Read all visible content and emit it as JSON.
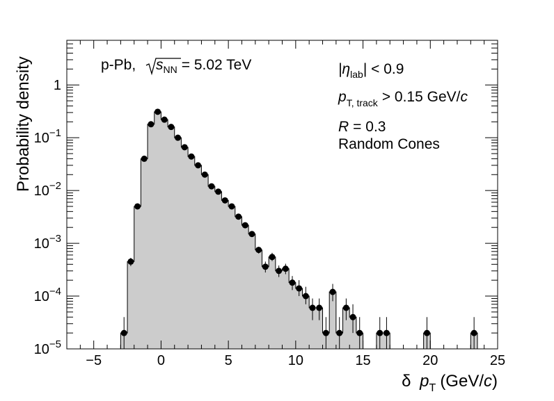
{
  "chart_data": {
    "type": "histogram",
    "xlabel": "δ p_T (GeV/c)",
    "ylabel": "Probability density",
    "xlim": [
      -7,
      25
    ],
    "ylim": [
      1e-05,
      7
    ],
    "yscale": "log",
    "bin_width": 0.5,
    "x_ticks": [
      -5,
      0,
      5,
      10,
      15,
      20,
      25
    ],
    "x_tick_labels": [
      "−5",
      "0",
      "5",
      "10",
      "15",
      "20",
      "25"
    ],
    "y_ticks": [
      {
        "value": 1e-05,
        "base": "10",
        "exp": "−5"
      },
      {
        "value": 0.0001,
        "base": "10",
        "exp": "−4"
      },
      {
        "value": 0.001,
        "base": "10",
        "exp": "−3"
      },
      {
        "value": 0.01,
        "base": "10",
        "exp": "−2"
      },
      {
        "value": 0.1,
        "base": "10",
        "exp": "−1"
      },
      {
        "value": 1,
        "base": "1",
        "exp": ""
      }
    ],
    "fill_color": "#cccccc",
    "line_color": "#000000",
    "marker_color": "#000000",
    "points": [
      {
        "x": -2.75,
        "y": 2e-05,
        "lo": 1e-05,
        "hi": 4e-05
      },
      {
        "x": -2.25,
        "y": 0.00045,
        "lo": 0.00037,
        "hi": 0.00053
      },
      {
        "x": -1.75,
        "y": 0.005
      },
      {
        "x": -1.25,
        "y": 0.04
      },
      {
        "x": -0.75,
        "y": 0.18
      },
      {
        "x": -0.25,
        "y": 0.31
      },
      {
        "x": 0.25,
        "y": 0.22
      },
      {
        "x": 0.75,
        "y": 0.16
      },
      {
        "x": 1.25,
        "y": 0.1
      },
      {
        "x": 1.75,
        "y": 0.066
      },
      {
        "x": 2.25,
        "y": 0.044
      },
      {
        "x": 2.75,
        "y": 0.03
      },
      {
        "x": 3.25,
        "y": 0.02
      },
      {
        "x": 3.75,
        "y": 0.012
      },
      {
        "x": 4.25,
        "y": 0.0095
      },
      {
        "x": 4.75,
        "y": 0.0065
      },
      {
        "x": 5.25,
        "y": 0.005
      },
      {
        "x": 5.75,
        "y": 0.0032
      },
      {
        "x": 6.25,
        "y": 0.0022
      },
      {
        "x": 6.75,
        "y": 0.0015
      },
      {
        "x": 7.25,
        "y": 0.00075,
        "lo": 0.00064,
        "hi": 0.00086
      },
      {
        "x": 7.75,
        "y": 0.00036,
        "lo": 0.00028,
        "hi": 0.00045
      },
      {
        "x": 8.25,
        "y": 0.00055,
        "lo": 0.00046,
        "hi": 0.00066
      },
      {
        "x": 8.75,
        "y": 0.0003,
        "lo": 0.00023,
        "hi": 0.00038
      },
      {
        "x": 9.25,
        "y": 0.00033,
        "lo": 0.00026,
        "hi": 0.00041
      },
      {
        "x": 9.75,
        "y": 0.00018,
        "lo": 0.00013,
        "hi": 0.00024
      },
      {
        "x": 10.25,
        "y": 0.00014,
        "lo": 0.0001,
        "hi": 0.0002
      },
      {
        "x": 10.75,
        "y": 0.0001,
        "lo": 7e-05,
        "hi": 0.00015
      },
      {
        "x": 11.25,
        "y": 6e-05,
        "lo": 3.5e-05,
        "hi": 9e-05
      },
      {
        "x": 11.75,
        "y": 6e-05,
        "lo": 3.5e-05,
        "hi": 9e-05
      },
      {
        "x": 12.25,
        "y": 2e-05,
        "lo": 1e-05,
        "hi": 4e-05
      },
      {
        "x": 12.75,
        "y": 0.00012,
        "lo": 8e-05,
        "hi": 0.00017
      },
      {
        "x": 13.25,
        "y": 2e-05,
        "lo": 1e-05,
        "hi": 4e-05
      },
      {
        "x": 13.75,
        "y": 6e-05,
        "lo": 3.5e-05,
        "hi": 9e-05
      },
      {
        "x": 14.25,
        "y": 4e-05,
        "lo": 2e-05,
        "hi": 7e-05
      },
      {
        "x": 14.75,
        "y": 2e-05,
        "lo": 1e-05,
        "hi": 4e-05
      },
      {
        "x": 16.25,
        "y": 2e-05,
        "lo": 1e-05,
        "hi": 4e-05
      },
      {
        "x": 16.75,
        "y": 2e-05,
        "lo": 1e-05,
        "hi": 4e-05
      },
      {
        "x": 19.75,
        "y": 2e-05,
        "lo": 1e-05,
        "hi": 4e-05
      },
      {
        "x": 23.25,
        "y": 2e-05,
        "lo": 1e-05,
        "hi": 4e-05
      }
    ],
    "annotations": {
      "system": "p-Pb,",
      "sqrt": "s",
      "sqrt_sub": "NN",
      "energy": "= 5.02 TeV",
      "eta": "|η",
      "eta_sub": "lab",
      "eta_rest": "| < 0.9",
      "pt": "p",
      "pt_sub": "T, track",
      "pt_rest": "> 0.15 GeV/",
      "pt_unit": "c",
      "radius_var": "R",
      "radius_rest": "= 0.3",
      "method": "Random Cones"
    },
    "xlabel_parts": {
      "delta": "δ",
      "p": "p",
      "sub": "T",
      "unit_open": "(GeV/",
      "unit_c": "c",
      "unit_close": ")"
    }
  }
}
